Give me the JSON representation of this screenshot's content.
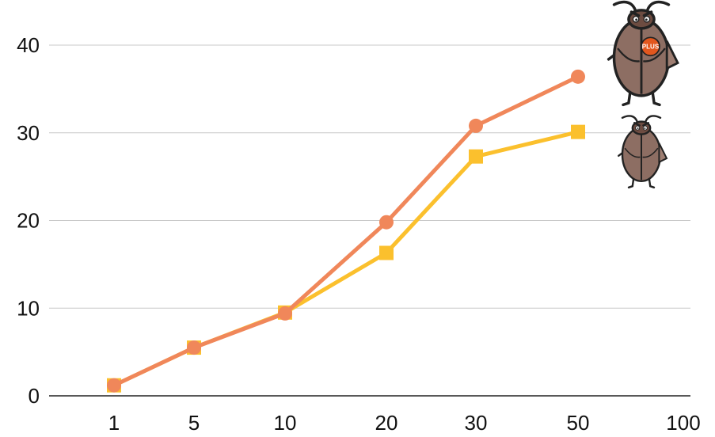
{
  "chart_data": {
    "type": "line",
    "categories": [
      "1",
      "5",
      "10",
      "20",
      "30",
      "50",
      "100"
    ],
    "series": [
      {
        "values": [
          1.2,
          5.5,
          9.5,
          16.3,
          27.3,
          30.1,
          null
        ],
        "color": "#fbc02d",
        "marker": "square",
        "legend_icon": "bug-icon"
      },
      {
        "values": [
          1.2,
          5.5,
          9.4,
          19.8,
          30.8,
          36.4,
          null
        ],
        "color": "#f0875a",
        "marker": "circle",
        "legend_icon": "bug-plus-icon",
        "legend_badge": "PLUS"
      }
    ],
    "y_ticks": [
      "0",
      "10",
      "20",
      "30",
      "40"
    ],
    "ylim": [
      0,
      40
    ],
    "grid": true,
    "legend_placement": "top-right"
  }
}
